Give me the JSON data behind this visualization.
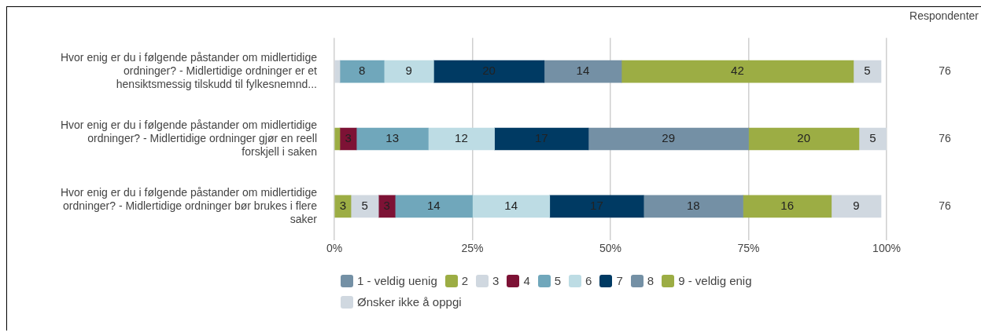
{
  "chart_data": {
    "type": "bar",
    "orientation": "horizontal",
    "stacked": true,
    "categories": [
      "Hvor enig er du i følgende påstander om midlertidige ordninger? - Midlertidige ordninger er et hensiktsmessig tilskudd til fylkesnemnd...",
      "Hvor enig er du i følgende påstander om midlertidige ordninger? - Midlertidige ordninger gjør en reell forskjell i saken",
      "Hvor enig er du i følgende påstander om midlertidige ordninger? - Midlertidige ordninger bør brukes i flere saker"
    ],
    "series": [
      {
        "name": "1 - veldig uenig",
        "color": "#7490a5",
        "values": [
          null,
          null,
          null
        ],
        "value_labels": [
          null,
          null,
          null
        ]
      },
      {
        "name": "2",
        "color": "#9cad44",
        "values": [
          null,
          1,
          3
        ],
        "value_labels": [
          null,
          null,
          "3"
        ]
      },
      {
        "name": "3",
        "color": "#d0d8e0",
        "values": [
          1,
          null,
          5
        ],
        "value_labels": [
          null,
          null,
          "5"
        ]
      },
      {
        "name": "4",
        "color": "#7d1235",
        "values": [
          null,
          3,
          3
        ],
        "value_labels": [
          null,
          "3",
          "3"
        ]
      },
      {
        "name": "5",
        "color": "#70a7bb",
        "values": [
          8,
          13,
          14
        ],
        "value_labels": [
          "8",
          "13",
          "14"
        ]
      },
      {
        "name": "6",
        "color": "#bddce4",
        "values": [
          9,
          12,
          14
        ],
        "value_labels": [
          "9",
          "12",
          "14"
        ]
      },
      {
        "name": "7",
        "color": "#003a63",
        "values": [
          20,
          17,
          17
        ],
        "value_labels": [
          "20",
          "17",
          "17"
        ]
      },
      {
        "name": "8",
        "color": "#7490a5",
        "values": [
          14,
          29,
          18
        ],
        "value_labels": [
          "14",
          "29",
          "18"
        ]
      },
      {
        "name": "9 - veldig enig",
        "color": "#9cad44",
        "values": [
          42,
          20,
          16
        ],
        "value_labels": [
          "42",
          "20",
          "16"
        ]
      },
      {
        "name": "Ønsker ikke å oppgi",
        "color": "#d0d8e0",
        "values": [
          5,
          5,
          9
        ],
        "value_labels": [
          "5",
          "5",
          "9"
        ]
      }
    ],
    "xlim": [
      0,
      100
    ],
    "xticks": [
      {
        "value": 0,
        "label": "0%"
      },
      {
        "value": 25,
        "label": "25%"
      },
      {
        "value": 50,
        "label": "50%"
      },
      {
        "value": 75,
        "label": "75%"
      },
      {
        "value": 100,
        "label": "100%"
      }
    ],
    "grid": "x",
    "legend": "bottom",
    "annotations": [
      "Respondenter",
      "76",
      "76",
      "76"
    ]
  }
}
